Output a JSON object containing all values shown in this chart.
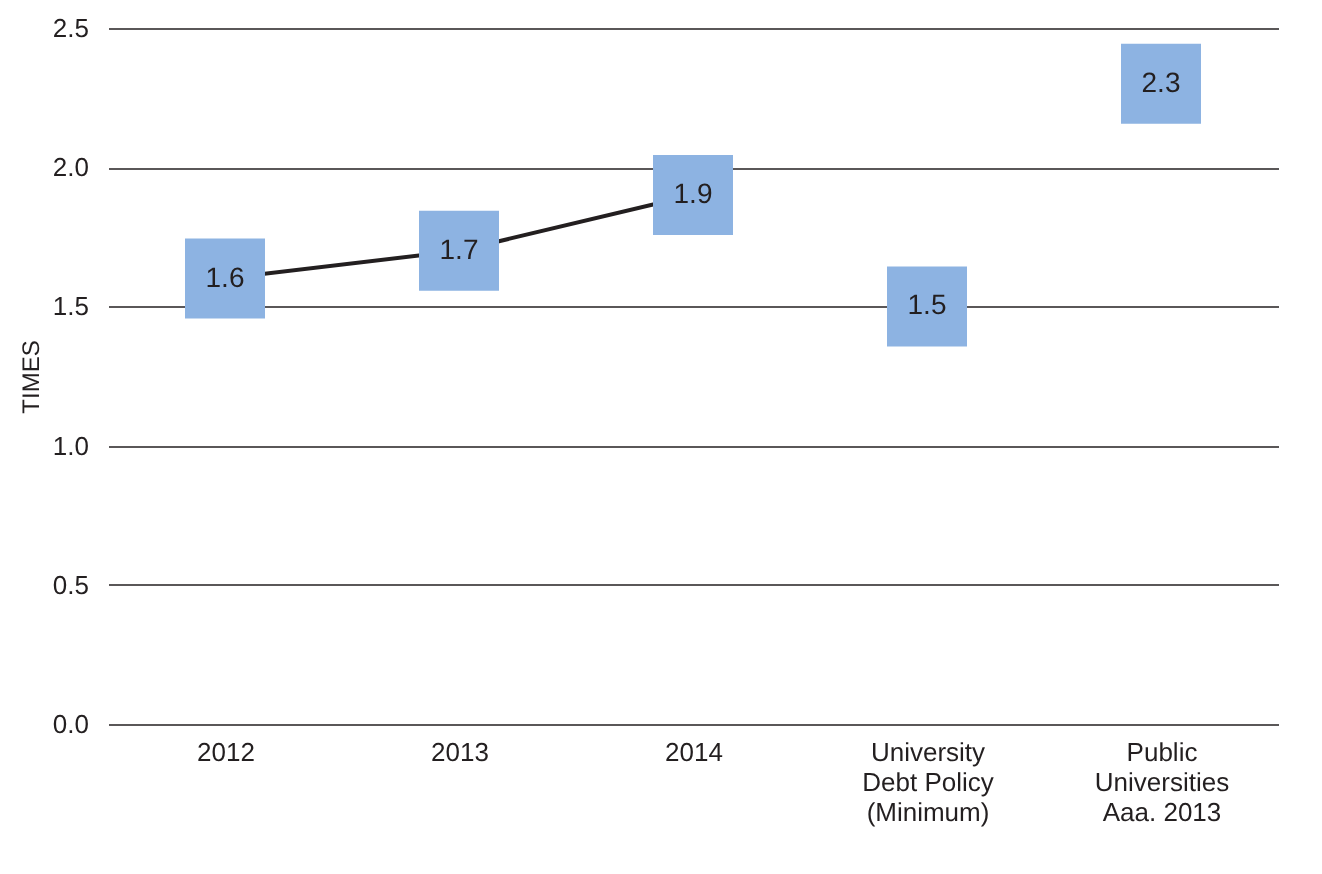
{
  "chart_data": {
    "type": "line",
    "ylabel": "TIMES",
    "categories": [
      "2012",
      "2013",
      "2014",
      "University\nDebt Policy\n(Minimum)",
      "Public\nUniversities\nAaa. 2013"
    ],
    "series": [
      {
        "type": "scatter",
        "color": "#8db3e2",
        "marker": "square",
        "values": [
          1.6,
          1.7,
          1.9,
          1.5,
          2.3
        ],
        "value_labels": [
          "1.6",
          "1.7",
          "1.9",
          "1.5",
          "2.3"
        ]
      },
      {
        "color": "#231f20",
        "marker": "none",
        "values": [
          1.6,
          1.7,
          1.9,
          null,
          null
        ]
      }
    ],
    "ylim": [
      0,
      2.5
    ],
    "yticks": [
      {
        "value": 0,
        "label": "0.0"
      },
      0.5,
      {
        "value": 1,
        "label": "1.0"
      },
      1.5,
      {
        "value": 2,
        "label": "2.0"
      },
      2.5
    ],
    "grid": "y"
  }
}
